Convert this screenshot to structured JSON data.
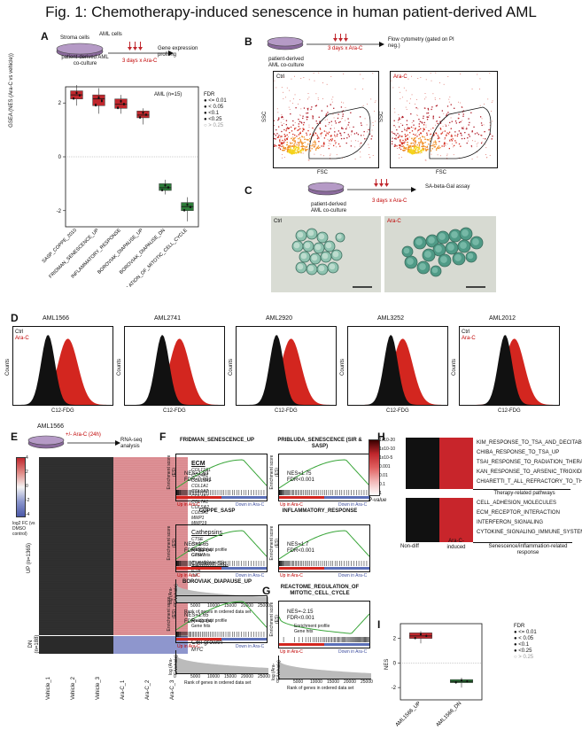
{
  "title": "Fig. 1: Chemotherapy-induced senescence in human patient-derived AML",
  "panel_labels": [
    "A",
    "B",
    "C",
    "D",
    "E",
    "F",
    "G",
    "H",
    "I"
  ],
  "colors": {
    "red": "#c0272d",
    "green": "#2e7d3a",
    "blue": "#5b6fb8",
    "black": "#111111",
    "dish": "#7a5a8e"
  },
  "panelA": {
    "stroma_label": "Stroma cells",
    "aml_label": "AML cells",
    "coculture_label": "patient-derived AML co-culture",
    "treatment": "3 days x Ara-C",
    "readout": "Gene expression profiling",
    "cohort": "AML (n=15)",
    "fdr_title": "FDR",
    "fdr_levels": [
      "<= 0.01",
      "< 0.05",
      "<0.1",
      "<0.25",
      "> 0.25"
    ],
    "ylabel": "GSEA (NES (Ara-C vs vehicle))",
    "chart_data": {
      "type": "box",
      "categories": [
        "SASP_COPPE_2010",
        "FRIDMAN_SENESCENCE_UP",
        "INFLAMMATORY_RESPONSE",
        "BOROVIAK_DIAPAUSE_UP",
        "BOROVIAK_DIAPAUSE_DN",
        "REACTOME_REGULATION_OF_MITOTIC_CELL_CYCLE"
      ],
      "ylabel": "GSEA (NES (Ara-C vs vehicle))",
      "yticks": [
        -2,
        0,
        2
      ],
      "ylim": [
        -2.6,
        2.6
      ],
      "medians": [
        2.3,
        2.15,
        1.95,
        1.55,
        -1.15,
        -1.85
      ],
      "q1": [
        2.15,
        1.9,
        1.8,
        1.45,
        -1.25,
        -2.0
      ],
      "q3": [
        2.45,
        2.3,
        2.15,
        1.7,
        -1.0,
        -1.7
      ],
      "whisker_low": [
        1.9,
        1.6,
        1.6,
        1.2,
        -1.4,
        -2.4
      ],
      "whisker_high": [
        2.7,
        2.55,
        2.3,
        1.8,
        -0.85,
        -1.5
      ],
      "colors": [
        "#c0272d",
        "#c0272d",
        "#c0272d",
        "#c0272d",
        "#2e7d3a",
        "#2e7d3a"
      ]
    }
  },
  "panelB": {
    "coculture_label": "patient-derived AML co-culture",
    "treatment": "3 days x Ara-C",
    "readout": "Flow cytometry (gated on PI neg.)",
    "plots": [
      {
        "label": "Ctrl",
        "xlabel": "FSC",
        "ylabel": "SSC"
      },
      {
        "label": "Ara-C",
        "xlabel": "FSC",
        "ylabel": "SSC"
      }
    ]
  },
  "panelC": {
    "coculture_label": "patient-derived AML co-culture",
    "treatment": "3 days x Ara-C",
    "readout": "SA-beta-Gal assay",
    "images": [
      "Ctrl",
      "Ara-C"
    ]
  },
  "panelD": {
    "ylabel": "Counts",
    "xlabel": "C12-FDG",
    "legend_ctrl": "Ctrl",
    "legend_arac": "Ara-C",
    "samples": [
      "AML1566",
      "AML2741",
      "AML2920",
      "AML3252",
      "AML2012"
    ]
  },
  "panelE": {
    "sample": "AML1566",
    "treatment": "+/- Ara-C (24h)",
    "readout": "RNA-seq analysis",
    "scale_title": "log2 FC (vs DMSO control)",
    "scale_ticks": [
      "4",
      "2",
      "0",
      "-2",
      "-4"
    ],
    "up_label": "UP (n=1365)",
    "dn_label": "DN (n=188)",
    "columns": [
      "Vehicle_1",
      "Vehicle_2",
      "Vehicle_3",
      "Ara-C_1",
      "Ara-C_2",
      "Ara-C_3"
    ],
    "groups": [
      {
        "title": "ECM",
        "genes": [
          "COL12A1",
          "COL4A1",
          "COL15A1",
          "COL1A1",
          "COL1A2",
          "COL4A1",
          "COL7A1",
          "COLSA2",
          "COL3A1",
          "MMP1",
          "MMP19"
        ]
      },
      {
        "title": "Cathepsins",
        "genes": [
          "CTSE",
          "CTSF",
          "CTSL2",
          "CTSW"
        ]
      },
      {
        "title": "Cytokine-Sig.",
        "genes": [
          "IL7R",
          "IL8",
          "..."
        ]
      },
      {
        "title": "Cell growth",
        "genes": [
          "MYC"
        ]
      }
    ]
  },
  "panelF": {
    "ylabel": "Enrichment score (ES)",
    "up_label": "Up in Ara-C",
    "down_label": "Down in Ara-C",
    "legend_profile": "Enrichment profile",
    "legend_hits": "Gene hits",
    "rank_ylabel": "log (Ara-C/Vehicle)",
    "rank_xlabel": "Rank of genes in ordered data set",
    "rank_ticks": [
      "0",
      "5000",
      "10000",
      "15000",
      "20000",
      "25000"
    ],
    "plots": [
      {
        "title": "FRIDMAN_SENESCENCE_UP",
        "nes": "NES=1.63",
        "fdr": "FDR<0.001"
      },
      {
        "title": "PRIBLUDA_SENESCENCE (SIR & SASP)",
        "nes": "NES=1.75",
        "fdr": "FDR<0.001"
      },
      {
        "title": "COPPE_SASP",
        "nes": "NES=1.65",
        "fdr": "FDR=3e-04"
      },
      {
        "title": "INFLAMMATORY_RESPONSE",
        "nes": "NES=1.7",
        "fdr": "FDR<0.001"
      },
      {
        "title": "BOROVIAK_DIAPAUSE_UP",
        "nes": "NES=1.65",
        "fdr": "FDR=4e-04"
      }
    ]
  },
  "panelG": {
    "title": "REACTOME_REGULATION_OF MITOTIC_CELL_CYCLE",
    "nes": "NES=-2.15",
    "fdr": "FDR<0.001"
  },
  "panelH": {
    "scale_ticks": [
      "1x10-20",
      "1x10-10",
      "1x10-5",
      "0.001",
      "0.01",
      "0.1",
      "1"
    ],
    "scale_title": "P-value",
    "therapy_pathways": [
      "KIM_RESPONSE_TO_TSA_AND_DECITABINE_UP",
      "CHIBA_RESPONSE_TO_TSA_UP",
      "TSAI_RESPONSE_TO_RADIATION_THERAPY",
      "KAN_RESPONSE_TO_ARSENIC_TRIOXIDE",
      "CHIARETTI_T_ALL_REFRACTORY_TO_THERAPY"
    ],
    "therapy_title": "Therapy-related pathways",
    "sen_pathways": [
      "CELL_ADHESION_MOLECULES",
      "ECM_RECEPTOR_INTERACTION",
      "INTERFERON_SIGNALING",
      "CYTOKINE_SIGNALING_IMMUNE_SYSTEM"
    ],
    "sen_title": "Senescence/inflammation-related response",
    "col_labels": [
      "Non-diff",
      "Ara-C-induced"
    ]
  },
  "panelI": {
    "ylabel": "NES",
    "fdr_title": "FDR",
    "fdr_levels": [
      "<= 0.01",
      "< 0.05",
      "<0.1",
      "<0.25",
      "> 0.25"
    ],
    "chart_data": {
      "type": "box",
      "categories": [
        "AML1566_UP",
        "AML1566_DN"
      ],
      "ylabel": "NES",
      "yticks": [
        -2,
        0,
        2
      ],
      "ylim": [
        -3,
        3.2
      ],
      "medians": [
        2.2,
        -1.5
      ],
      "q1": [
        2.0,
        -1.6
      ],
      "q3": [
        2.45,
        -1.35
      ],
      "whisker_low": [
        1.6,
        -2.0
      ],
      "whisker_high": [
        2.6,
        -1.2
      ],
      "colors": [
        "#c0272d",
        "#2e7d3a"
      ]
    }
  }
}
